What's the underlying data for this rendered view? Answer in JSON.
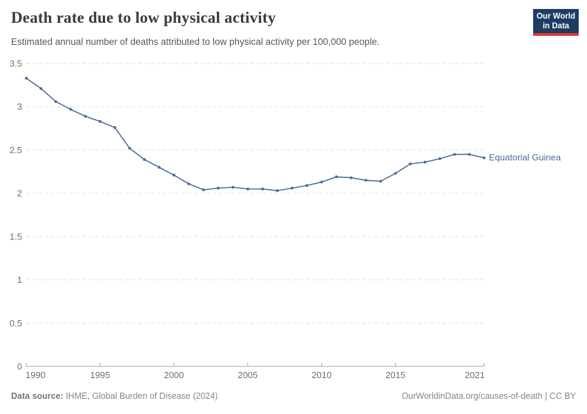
{
  "header": {
    "title": "Death rate due to low physical activity",
    "subtitle": "Estimated annual number of deaths attributed to low physical activity per 100,000 people.",
    "logo": {
      "line1": "Our World",
      "line2": "in Data",
      "bg": "#1d3d63",
      "bar": "#dd3b33"
    }
  },
  "chart_data": {
    "type": "line",
    "title": "Death rate due to low physical activity",
    "xlabel": "",
    "ylabel": "",
    "xlim": [
      1990,
      2021
    ],
    "ylim": [
      0,
      3.5
    ],
    "x_ticks": [
      1990,
      1995,
      2000,
      2005,
      2010,
      2015,
      2021
    ],
    "y_ticks": [
      0,
      0.5,
      1,
      1.5,
      2,
      2.5,
      3,
      3.5
    ],
    "grid": "horizontal-dashed",
    "legend_position": "end-of-line-label",
    "series": [
      {
        "name": "Equatorial Guinea",
        "color": "#4c6a9c",
        "x": [
          1990,
          1991,
          1992,
          1993,
          1994,
          1995,
          1996,
          1997,
          1998,
          1999,
          2000,
          2001,
          2002,
          2003,
          2004,
          2005,
          2006,
          2007,
          2008,
          2009,
          2010,
          2011,
          2012,
          2013,
          2014,
          2015,
          2016,
          2017,
          2018,
          2019,
          2020,
          2021
        ],
        "values": [
          3.33,
          3.21,
          3.06,
          2.97,
          2.89,
          2.83,
          2.76,
          2.52,
          2.39,
          2.3,
          2.21,
          2.11,
          2.04,
          2.06,
          2.07,
          2.05,
          2.05,
          2.03,
          2.06,
          2.09,
          2.13,
          2.19,
          2.18,
          2.15,
          2.14,
          2.23,
          2.34,
          2.36,
          2.4,
          2.45,
          2.45,
          2.41
        ]
      }
    ]
  },
  "footer": {
    "source_label": "Data source:",
    "source_value": " IHME, Global Burden of Disease (2024)",
    "link": "OurWorldinData.org/causes-of-death",
    "license": " | CC BY"
  },
  "colors": {
    "line": "#4c6a9c",
    "grid": "#e0e0e0",
    "axis": "#a5a5a5",
    "tick_text": "#6e6e6e",
    "title_text": "#3b3b3b",
    "subtitle_text": "#575757",
    "footer_text": "#858585",
    "logo_bg": "#1d3d63",
    "logo_bar": "#dd3b33"
  }
}
